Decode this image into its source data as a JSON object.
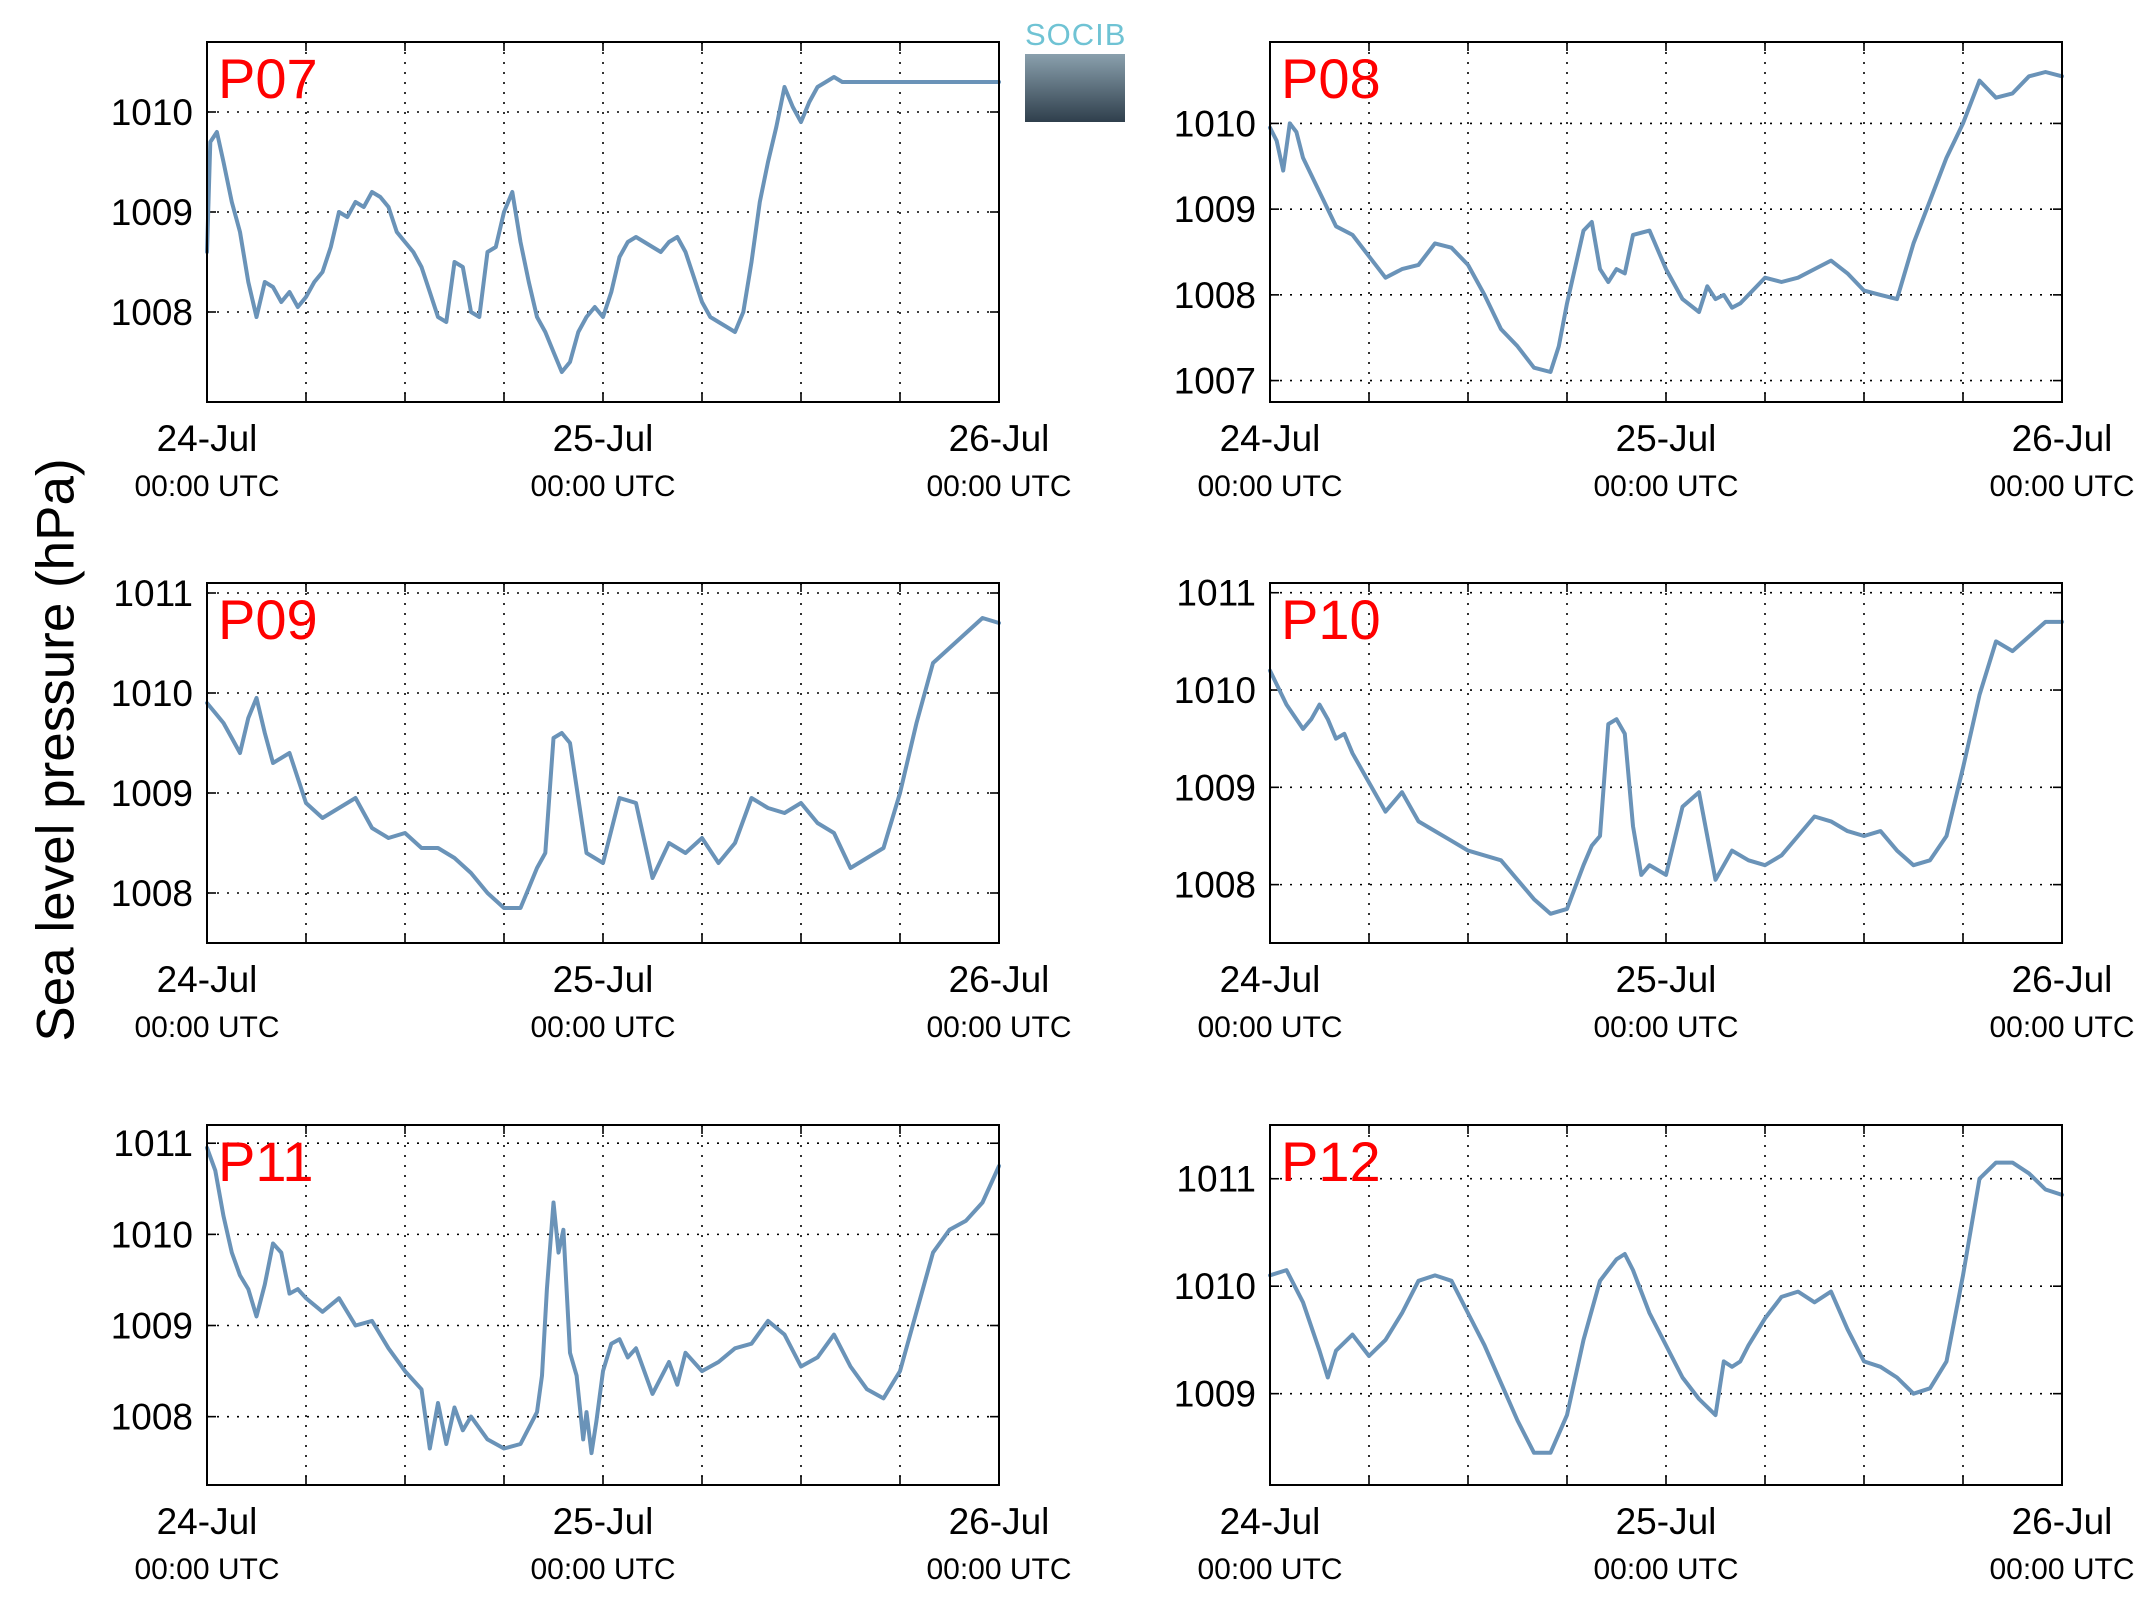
{
  "ylabel": "Sea level pressure (hPa)",
  "logo_text": "SOCIB",
  "colors": {
    "line": "#6a93b8",
    "station_label": "#ff0000",
    "axes": "#000000",
    "grid": "#000000"
  },
  "chart_data": [
    {
      "type": "line",
      "title": "P07",
      "ylim": [
        1007.1,
        1010.7
      ],
      "yticks": [
        1008,
        1009,
        1010
      ],
      "xticks": [
        {
          "day": "24-Jul",
          "time": "00:00 UTC"
        },
        {
          "day": "25-Jul",
          "time": "00:00 UTC"
        },
        {
          "day": "26-Jul",
          "time": "00:00 UTC"
        }
      ],
      "xlim_hours": [
        0,
        48
      ],
      "grid": true,
      "x": [
        0,
        0.2,
        0.6,
        1,
        1.5,
        2,
        2.5,
        3,
        3.5,
        4,
        4.5,
        5,
        5.5,
        6,
        6.5,
        7,
        7.5,
        8,
        8.5,
        9,
        9.5,
        10,
        10.5,
        11,
        11.5,
        12,
        12.5,
        13,
        13.5,
        14,
        14.5,
        15,
        15.5,
        16,
        16.5,
        17,
        17.5,
        18,
        18.5,
        19,
        19.5,
        20,
        20.5,
        21,
        21.5,
        22,
        22.5,
        23,
        23.5,
        24,
        24.5,
        25,
        25.5,
        26,
        26.5,
        27,
        27.5,
        28,
        28.5,
        29,
        29.5,
        30,
        30.5,
        31,
        31.5,
        32,
        32.5,
        33,
        33.5,
        34,
        34.5,
        35,
        35.5,
        36,
        36.5,
        37,
        37.5,
        38,
        38.5,
        39,
        39.5,
        40,
        40.5,
        41,
        41.5,
        42,
        42.5,
        43,
        43.5,
        44,
        44.5,
        45,
        45.5,
        46,
        46.5,
        47,
        47.5,
        48
      ],
      "y": [
        1008.6,
        1009.7,
        1009.8,
        1009.5,
        1009.1,
        1008.8,
        1008.3,
        1007.95,
        1008.3,
        1008.25,
        1008.1,
        1008.2,
        1008.05,
        1008.15,
        1008.3,
        1008.4,
        1008.65,
        1009.0,
        1008.95,
        1009.1,
        1009.05,
        1009.2,
        1009.15,
        1009.05,
        1008.8,
        1008.7,
        1008.6,
        1008.45,
        1008.2,
        1007.95,
        1007.9,
        1008.5,
        1008.45,
        1008.0,
        1007.95,
        1008.6,
        1008.65,
        1009.0,
        1009.2,
        1008.7,
        1008.3,
        1007.95,
        1007.8,
        1007.6,
        1007.4,
        1007.5,
        1007.8,
        1007.95,
        1008.05,
        1007.95,
        1008.2,
        1008.55,
        1008.7,
        1008.75,
        1008.7,
        1008.65,
        1008.6,
        1008.7,
        1008.75,
        1008.6,
        1008.35,
        1008.1,
        1007.95,
        1007.9,
        1007.85,
        1007.8,
        1008.0,
        1008.5,
        1009.1,
        1009.5,
        1009.85,
        1010.25,
        1010.05,
        1009.9,
        1010.1,
        1010.25,
        1010.3,
        1010.35,
        1010.3,
        1010.3,
        1010.3,
        1010.3,
        1010.3,
        1010.3,
        1010.3,
        1010.3,
        1010.3,
        1010.3,
        1010.3,
        1010.3,
        1010.3,
        1010.3,
        1010.3,
        1010.3,
        1010.3,
        1010.3,
        1010.3,
        1010.3
      ]
    },
    {
      "type": "line",
      "title": "P08",
      "ylim": [
        1006.75,
        1010.95
      ],
      "yticks": [
        1007,
        1008,
        1009,
        1010
      ],
      "xticks": [
        {
          "day": "24-Jul",
          "time": "00:00 UTC"
        },
        {
          "day": "25-Jul",
          "time": "00:00 UTC"
        },
        {
          "day": "26-Jul",
          "time": "00:00 UTC"
        }
      ],
      "xlim_hours": [
        0,
        48
      ],
      "grid": true,
      "x": [
        0,
        0.4,
        0.8,
        1.2,
        1.6,
        2,
        3,
        4,
        5,
        6,
        7,
        8,
        9,
        10,
        11,
        12,
        13,
        14,
        15,
        16,
        17,
        17.5,
        18,
        19,
        19.5,
        20,
        20.5,
        21,
        21.5,
        22,
        23,
        24,
        25,
        26,
        26.5,
        27,
        27.5,
        28,
        28.5,
        29,
        30,
        31,
        32,
        33,
        34,
        35,
        36,
        37,
        38,
        39,
        40,
        41,
        42,
        43,
        44,
        45,
        46,
        47,
        48
      ],
      "y": [
        1009.95,
        1009.8,
        1009.45,
        1010.0,
        1009.9,
        1009.6,
        1009.2,
        1008.8,
        1008.7,
        1008.45,
        1008.2,
        1008.3,
        1008.35,
        1008.6,
        1008.55,
        1008.35,
        1008.0,
        1007.6,
        1007.4,
        1007.15,
        1007.1,
        1007.4,
        1007.9,
        1008.75,
        1008.85,
        1008.3,
        1008.15,
        1008.3,
        1008.25,
        1008.7,
        1008.75,
        1008.3,
        1007.95,
        1007.8,
        1008.1,
        1007.95,
        1008.0,
        1007.85,
        1007.9,
        1008.0,
        1008.2,
        1008.15,
        1008.2,
        1008.3,
        1008.4,
        1008.25,
        1008.05,
        1008.0,
        1007.95,
        1008.6,
        1009.1,
        1009.6,
        1010.0,
        1010.5,
        1010.3,
        1010.35,
        1010.55,
        1010.6,
        1010.55
      ]
    },
    {
      "type": "line",
      "title": "P09",
      "ylim": [
        1007.5,
        1011.1
      ],
      "yticks": [
        1008,
        1009,
        1010,
        1011
      ],
      "xticks": [
        {
          "day": "24-Jul",
          "time": "00:00 UTC"
        },
        {
          "day": "25-Jul",
          "time": "00:00 UTC"
        },
        {
          "day": "26-Jul",
          "time": "00:00 UTC"
        }
      ],
      "xlim_hours": [
        0,
        48
      ],
      "grid": true,
      "x": [
        0,
        0.5,
        1,
        1.5,
        2,
        2.5,
        3,
        3.5,
        4,
        5,
        6,
        7,
        8,
        9,
        10,
        11,
        12,
        13,
        14,
        15,
        16,
        17,
        18,
        19,
        19.5,
        20,
        20.5,
        21,
        21.5,
        22,
        23,
        24,
        25,
        26,
        27,
        28,
        29,
        30,
        31,
        32,
        33,
        34,
        35,
        36,
        37,
        38,
        39,
        40,
        41,
        42,
        43,
        44,
        45,
        46,
        47,
        48
      ],
      "y": [
        1009.9,
        1009.8,
        1009.7,
        1009.55,
        1009.4,
        1009.75,
        1009.95,
        1009.6,
        1009.3,
        1009.4,
        1008.9,
        1008.75,
        1008.85,
        1008.95,
        1008.65,
        1008.55,
        1008.6,
        1008.45,
        1008.45,
        1008.35,
        1008.2,
        1008.0,
        1007.85,
        1007.85,
        1008.05,
        1008.25,
        1008.4,
        1009.55,
        1009.6,
        1009.5,
        1008.4,
        1008.3,
        1008.95,
        1008.9,
        1008.15,
        1008.5,
        1008.4,
        1008.55,
        1008.3,
        1008.5,
        1008.95,
        1008.85,
        1008.8,
        1008.9,
        1008.7,
        1008.6,
        1008.25,
        1008.35,
        1008.45,
        1009.0,
        1009.7,
        1010.3,
        1010.45,
        1010.6,
        1010.75,
        1010.7
      ]
    },
    {
      "type": "line",
      "title": "P10",
      "ylim": [
        1007.4,
        1011.1
      ],
      "yticks": [
        1008,
        1009,
        1010,
        1011
      ],
      "xticks": [
        {
          "day": "24-Jul",
          "time": "00:00 UTC"
        },
        {
          "day": "25-Jul",
          "time": "00:00 UTC"
        },
        {
          "day": "26-Jul",
          "time": "00:00 UTC"
        }
      ],
      "xlim_hours": [
        0,
        48
      ],
      "grid": true,
      "x": [
        0,
        1,
        2,
        2.5,
        3,
        3.5,
        4,
        4.5,
        5,
        6,
        7,
        8,
        9,
        10,
        11,
        12,
        13,
        14,
        15,
        16,
        17,
        18,
        19,
        19.5,
        20,
        20.5,
        21,
        21.5,
        22,
        22.5,
        23,
        24,
        25,
        26,
        27,
        28,
        29,
        30,
        31,
        32,
        33,
        34,
        35,
        36,
        37,
        38,
        39,
        40,
        41,
        42,
        43,
        44,
        45,
        46,
        47,
        48
      ],
      "y": [
        1010.2,
        1009.85,
        1009.6,
        1009.7,
        1009.85,
        1009.7,
        1009.5,
        1009.55,
        1009.35,
        1009.05,
        1008.75,
        1008.95,
        1008.65,
        1008.55,
        1008.45,
        1008.35,
        1008.3,
        1008.25,
        1008.05,
        1007.85,
        1007.7,
        1007.75,
        1008.2,
        1008.4,
        1008.5,
        1009.65,
        1009.7,
        1009.55,
        1008.6,
        1008.1,
        1008.2,
        1008.1,
        1008.8,
        1008.95,
        1008.05,
        1008.35,
        1008.25,
        1008.2,
        1008.3,
        1008.5,
        1008.7,
        1008.65,
        1008.55,
        1008.5,
        1008.55,
        1008.35,
        1008.2,
        1008.25,
        1008.5,
        1009.2,
        1009.95,
        1010.5,
        1010.4,
        1010.55,
        1010.7,
        1010.7
      ]
    },
    {
      "type": "line",
      "title": "P11",
      "ylim": [
        1007.25,
        1011.2
      ],
      "yticks": [
        1008,
        1009,
        1010,
        1011
      ],
      "xticks": [
        {
          "day": "24-Jul",
          "time": "00:00 UTC"
        },
        {
          "day": "25-Jul",
          "time": "00:00 UTC"
        },
        {
          "day": "26-Jul",
          "time": "00:00 UTC"
        }
      ],
      "xlim_hours": [
        0,
        48
      ],
      "grid": true,
      "x": [
        0,
        0.5,
        1,
        1.5,
        2,
        2.5,
        3,
        3.5,
        4,
        4.5,
        5,
        5.5,
        6,
        7,
        8,
        9,
        10,
        11,
        12,
        13,
        13.5,
        14,
        14.5,
        15,
        15.5,
        16,
        17,
        18,
        19,
        20,
        20.3,
        20.6,
        21,
        21.3,
        21.6,
        22,
        22.4,
        22.8,
        23,
        23.3,
        23.6,
        24,
        24.5,
        25,
        25.5,
        26,
        27,
        28,
        28.5,
        29,
        30,
        31,
        32,
        33,
        34,
        35,
        36,
        37,
        38,
        39,
        40,
        41,
        42,
        43,
        44,
        45,
        46,
        47,
        48
      ],
      "y": [
        1010.95,
        1010.7,
        1010.2,
        1009.8,
        1009.55,
        1009.4,
        1009.1,
        1009.45,
        1009.9,
        1009.8,
        1009.35,
        1009.4,
        1009.3,
        1009.15,
        1009.3,
        1009.0,
        1009.05,
        1008.75,
        1008.5,
        1008.3,
        1007.65,
        1008.15,
        1007.7,
        1008.1,
        1007.85,
        1008.0,
        1007.75,
        1007.65,
        1007.7,
        1008.05,
        1008.45,
        1009.4,
        1010.35,
        1009.8,
        1010.05,
        1008.7,
        1008.45,
        1007.75,
        1008.05,
        1007.6,
        1007.95,
        1008.5,
        1008.8,
        1008.85,
        1008.65,
        1008.75,
        1008.25,
        1008.6,
        1008.35,
        1008.7,
        1008.5,
        1008.6,
        1008.75,
        1008.8,
        1009.05,
        1008.9,
        1008.55,
        1008.65,
        1008.9,
        1008.55,
        1008.3,
        1008.2,
        1008.5,
        1009.15,
        1009.8,
        1010.05,
        1010.15,
        1010.35,
        1010.75
      ]
    },
    {
      "type": "line",
      "title": "P12",
      "ylim": [
        1008.15,
        1011.5
      ],
      "yticks": [
        1009,
        1010,
        1011
      ],
      "xticks": [
        {
          "day": "24-Jul",
          "time": "00:00 UTC"
        },
        {
          "day": "25-Jul",
          "time": "00:00 UTC"
        },
        {
          "day": "26-Jul",
          "time": "00:00 UTC"
        }
      ],
      "xlim_hours": [
        0,
        48
      ],
      "grid": true,
      "x": [
        0,
        1,
        2,
        3,
        3.5,
        4,
        5,
        6,
        7,
        8,
        9,
        10,
        11,
        12,
        13,
        14,
        15,
        16,
        17,
        18,
        19,
        20,
        21,
        21.5,
        22,
        23,
        24,
        25,
        26,
        27,
        27.5,
        28,
        28.5,
        29,
        30,
        31,
        32,
        33,
        34,
        35,
        36,
        37,
        38,
        39,
        40,
        41,
        42,
        43,
        44,
        45,
        46,
        47,
        48
      ],
      "y": [
        1010.1,
        1010.15,
        1009.85,
        1009.4,
        1009.15,
        1009.4,
        1009.55,
        1009.35,
        1009.5,
        1009.75,
        1010.05,
        1010.1,
        1010.05,
        1009.75,
        1009.45,
        1009.1,
        1008.75,
        1008.45,
        1008.45,
        1008.8,
        1009.5,
        1010.05,
        1010.25,
        1010.3,
        1010.15,
        1009.75,
        1009.45,
        1009.15,
        1008.95,
        1008.8,
        1009.3,
        1009.25,
        1009.3,
        1009.45,
        1009.7,
        1009.9,
        1009.95,
        1009.85,
        1009.95,
        1009.6,
        1009.3,
        1009.25,
        1009.15,
        1009.0,
        1009.05,
        1009.3,
        1010.1,
        1011.0,
        1011.15,
        1011.15,
        1011.05,
        1010.9,
        1010.85
      ]
    }
  ]
}
